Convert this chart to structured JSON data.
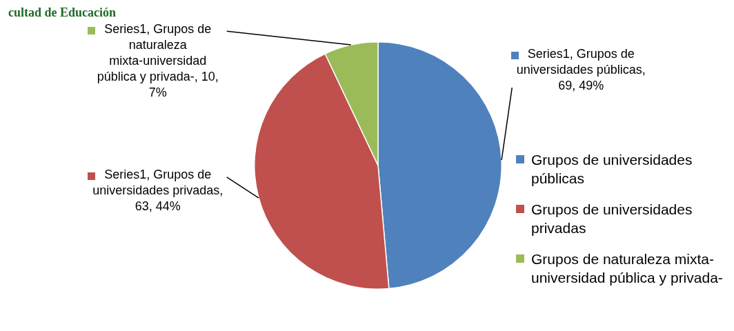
{
  "chart_data": {
    "type": "pie",
    "categories": [
      "Grupos de universidades públicas",
      "Grupos de universidades privadas",
      "Grupos de naturaleza mixta-universidad pública y privada-"
    ],
    "values": [
      69,
      63,
      10
    ],
    "colors": [
      "#4f81bd",
      "#c0504d",
      "#9bbb59"
    ],
    "value_labels": [
      "Series1, Grupos de universidades públicas, 69, 49%",
      "Series1, Grupos de universidades privadas, 63, 44%",
      "Series1, Grupos de naturaleza mixta-universidad pública y privada-, 10, 7%"
    ],
    "legend": "right",
    "annotations": [
      "cultad de Educación"
    ]
  }
}
